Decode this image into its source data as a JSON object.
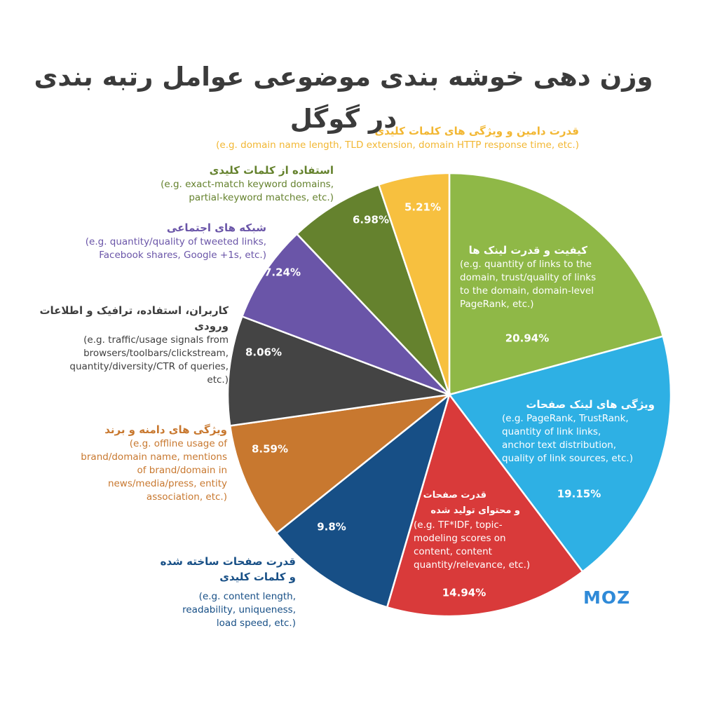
{
  "title": "وزن دهی خوشه بندی موضوعی عوامل رتبه بندی در گوگل",
  "brand": "MOZ",
  "colors": {
    "domain_keywords": "#f7c03f",
    "link_quality": "#8fb847",
    "page_links": "#2eb0e4",
    "page_content": "#d93a3a",
    "page_keywords": "#174f86",
    "brand_domain": "#c8782f",
    "usage_traffic": "#444444",
    "social": "#6a55a8",
    "exact_keywords": "#65822e"
  },
  "chart_data": {
    "type": "pie",
    "title": "وزن دهی خوشه بندی موضوعی عوامل رتبه بندی در گوگل",
    "slices": [
      {
        "key": "link_quality",
        "value": 20.94,
        "label": "20.94%",
        "name": "کیفیت و قدرت لینک ها",
        "desc": [
          "(e.g. quantity of links to the",
          "domain, trust/quality of links",
          "to the domain, domain-level",
          "PageRank, etc.)"
        ]
      },
      {
        "key": "page_links",
        "value": 19.15,
        "label": "19.15%",
        "name": "ویژگی های لینک صفحات",
        "desc": [
          "(e.g. PageRank, TrustRank,",
          "quantity of link links,",
          "anchor text distribution,",
          "quality of link sources, etc.)"
        ]
      },
      {
        "key": "page_content",
        "value": 14.94,
        "label": "14.94%",
        "name": [
          "قدرت صفحات",
          "و محتوای تولید شده"
        ],
        "desc": [
          "(e.g. TF*IDF, topic-",
          "modeling scores on",
          "content, content",
          "quantity/relevance, etc.)"
        ]
      },
      {
        "key": "page_keywords",
        "value": 9.8,
        "label": "9.8%",
        "name": [
          "قدرت صفحات ساخته شده",
          "و کلمات کلیدی"
        ],
        "desc": [
          "(e.g. content length,",
          "readability, uniqueness,",
          "load speed, etc.)"
        ]
      },
      {
        "key": "brand_domain",
        "value": 8.59,
        "label": "8.59%",
        "name": "ویژگی های دامنه و برند",
        "desc": [
          "(e.g. offline usage of",
          "brand/domain name, mentions",
          "of brand/domain in",
          "news/media/press, entity",
          "association, etc.)"
        ]
      },
      {
        "key": "usage_traffic",
        "value": 8.06,
        "label": "8.06%",
        "name": "کاربران، استفاده، ترافیک و اطلاعات ورودی",
        "desc": [
          "(e.g. traffic/usage signals from",
          "browsers/toolbars/clickstream,",
          "quantity/diversity/CTR of queries,",
          "etc.)"
        ]
      },
      {
        "key": "social",
        "value": 7.24,
        "label": "7.24%",
        "name": "شبکه های اجتماعی",
        "desc": [
          "(e.g. quantity/quality of tweeted links,",
          "Facebook shares, Google +1s, etc.)"
        ]
      },
      {
        "key": "exact_keywords",
        "value": 6.98,
        "label": "6.98%",
        "name": "استفاده از کلمات کلیدی",
        "desc": [
          "(e.g. exact-match keyword domains,",
          "partial-keyword matches, etc.)"
        ]
      },
      {
        "key": "domain_keywords",
        "value": 5.21,
        "label": "5.21%",
        "name": "قدرت دامین و ویژگی های کلمات کلیدی",
        "desc": [
          "(e.g. domain name length, TLD extension, domain HTTP response time, etc.)"
        ]
      }
    ]
  }
}
